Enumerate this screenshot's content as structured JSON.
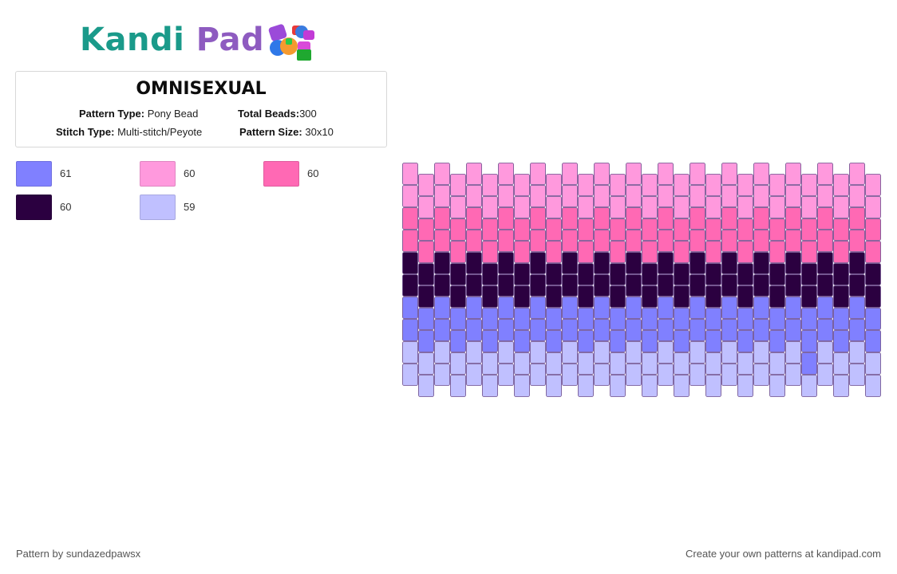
{
  "brand": {
    "word1": "Kandi",
    "word2": "Pad",
    "icon": "bead-pile-icon"
  },
  "pattern": {
    "name": "OMNISEXUAL",
    "type_label": "Pattern Type:",
    "type_value": "Pony Bead",
    "beads_label": "Total Beads:",
    "beads_value": "300",
    "stitch_label": "Stitch Type:",
    "stitch_value": "Multi-stitch/Peyote",
    "size_label": "Pattern Size:",
    "size_value": "30x10",
    "columns": 30,
    "rows": 10
  },
  "legend": [
    {
      "color": "#8080ff",
      "count": "61"
    },
    {
      "color": "#ff99dd",
      "count": "60"
    },
    {
      "color": "#ff69b4",
      "count": "60"
    },
    {
      "color": "#2b0040",
      "count": "60"
    },
    {
      "color": "#c0c0ff",
      "count": "59"
    }
  ],
  "bead_rows": [
    "#ff99dd",
    "#ff99dd",
    "#ff69b4",
    "#ff69b4",
    "#2b0040",
    "#2b0040",
    "#8080ff",
    "#8080ff",
    "#c0c0ff",
    "#c0c0ff"
  ],
  "bead_outline": "#6a4a8a",
  "odd_bead": {
    "row": 8,
    "column": 25,
    "color": "#8080ff"
  },
  "footer": {
    "credit": "Pattern by sundazedpawsx",
    "promo": "Create your own patterns at kandipad.com"
  }
}
